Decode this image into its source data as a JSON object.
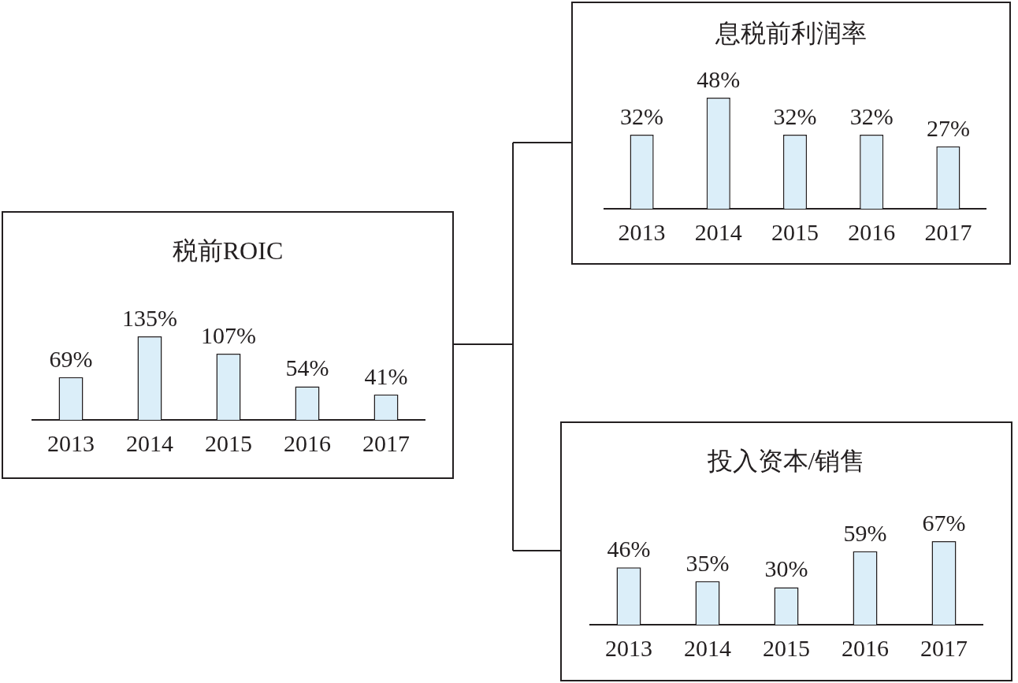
{
  "chart_data": [
    {
      "type": "bar",
      "title": "税前ROIC",
      "categories": [
        "2013",
        "2014",
        "2015",
        "2016",
        "2017"
      ],
      "values": [
        69,
        135,
        107,
        54,
        41
      ],
      "value_labels": [
        "69%",
        "135%",
        "107%",
        "54%",
        "41%"
      ],
      "color": "#dbeef9"
    },
    {
      "type": "bar",
      "title": "息税前利润率",
      "categories": [
        "2013",
        "2014",
        "2015",
        "2016",
        "2017"
      ],
      "values": [
        32,
        48,
        32,
        32,
        27
      ],
      "value_labels": [
        "32%",
        "48%",
        "32%",
        "32%",
        "27%"
      ],
      "color": "#dbeef9"
    },
    {
      "type": "bar",
      "title": "投入资本/销售",
      "categories": [
        "2013",
        "2014",
        "2015",
        "2016",
        "2017"
      ],
      "values": [
        46,
        35,
        30,
        59,
        67
      ],
      "value_labels": [
        "46%",
        "35%",
        "30%",
        "59%",
        "67%"
      ],
      "color": "#dbeef9"
    }
  ]
}
